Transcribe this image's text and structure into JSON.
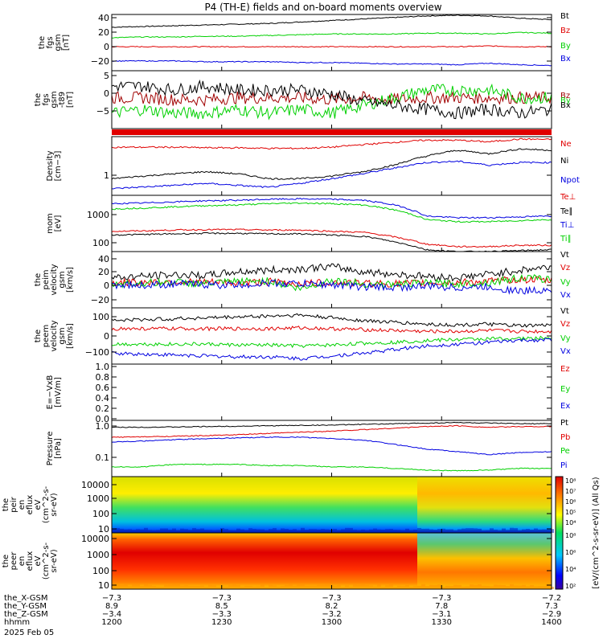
{
  "title": "P4 (TH-E) fields and on-board moments overview",
  "colors": {
    "black": "#000000",
    "red": "#e00000",
    "green": "#00d000",
    "blue": "#0000e0",
    "darkred": "#a00000"
  },
  "chart_data": [
    {
      "type": "line",
      "ylabel": [
        "the",
        "fgs",
        "gsm",
        "[nT]"
      ],
      "yticks": [
        "40",
        "20",
        "0",
        "−20"
      ],
      "ylim": [
        -30,
        45
      ],
      "series": [
        {
          "name": "Bt",
          "color": "black",
          "values": [
            28,
            29,
            30,
            31,
            32,
            33,
            35,
            37,
            39,
            41,
            43,
            44,
            43,
            40,
            38
          ]
        },
        {
          "name": "Bz",
          "color": "red",
          "values": [
            2,
            2,
            2,
            2,
            2,
            2,
            2,
            2,
            2,
            2,
            2,
            2,
            3,
            2,
            2
          ]
        },
        {
          "name": "By",
          "color": "green",
          "values": [
            14,
            15,
            15,
            16,
            16,
            17,
            18,
            19,
            19,
            19,
            20,
            20,
            19,
            21,
            20
          ]
        },
        {
          "name": "Bx",
          "color": "blue",
          "values": [
            -17,
            -17,
            -17,
            -18,
            -18,
            -18,
            -19,
            -19,
            -20,
            -21,
            -21,
            -22,
            -20,
            -22,
            -23
          ]
        }
      ]
    },
    {
      "type": "line",
      "ylabel": [
        "the",
        "fgs",
        "gsm",
        "-t89",
        "[nT]"
      ],
      "yticks": [
        "5",
        "0",
        "−5"
      ],
      "ylim": [
        -9,
        6
      ],
      "series": [
        {
          "name": "Bz",
          "color": "darkred",
          "values": [
            -1,
            -1,
            -1.5,
            -1.5,
            -1,
            -1,
            -1,
            -1.5,
            -1,
            -1.5,
            -1,
            -1,
            -1,
            -1,
            -1
          ]
        },
        {
          "name": "By",
          "color": "green",
          "values": [
            -5,
            -4,
            -5,
            -5,
            -4,
            -5,
            -4,
            -5,
            -3,
            -1,
            1,
            1,
            1,
            -1,
            -1
          ]
        },
        {
          "name": "Bx",
          "color": "black",
          "values": [
            2,
            2,
            1,
            2,
            1,
            1,
            1,
            0,
            -2,
            -3,
            -4,
            -5,
            -4,
            -5,
            -4
          ]
        }
      ]
    },
    {
      "type": "line",
      "ylabel": [
        "Density",
        "[cm−3]"
      ],
      "yticks": [
        "1"
      ],
      "scale": "log",
      "ylim": [
        0.3,
        6
      ],
      "series": [
        {
          "name": "Ne",
          "color": "red",
          "values": [
            3.5,
            3.5,
            3.5,
            3.4,
            3.4,
            3.3,
            3.3,
            3.5,
            4,
            4.5,
            5,
            5,
            4.6,
            5.3,
            5.2
          ]
        },
        {
          "name": "Ni",
          "color": "black",
          "values": [
            0.7,
            0.8,
            0.9,
            1.0,
            0.9,
            0.7,
            0.7,
            0.8,
            1.0,
            1.4,
            2.2,
            3.0,
            2.5,
            3.2,
            3.0
          ]
        },
        {
          "name": "Npot",
          "color": "blue",
          "values": [
            0.42,
            0.46,
            0.5,
            0.55,
            0.5,
            0.45,
            0.55,
            0.7,
            0.9,
            1.2,
            1.6,
            1.7,
            1.4,
            1.6,
            1.6
          ]
        }
      ]
    },
    {
      "type": "line",
      "ylabel": [
        "mom",
        "[eV]"
      ],
      "yticks": [
        "1000",
        "100"
      ],
      "scale": "log",
      "ylim": [
        70,
        4000
      ],
      "series": [
        {
          "name": "Te⊥",
          "color": "red",
          "values": [
            300,
            310,
            330,
            340,
            340,
            330,
            330,
            300,
            280,
            200,
            120,
            100,
            100,
            110,
            110
          ]
        },
        {
          "name": "Te∥",
          "color": "black",
          "values": [
            230,
            240,
            250,
            260,
            260,
            250,
            250,
            230,
            210,
            140,
            80,
            70,
            70,
            75,
            80
          ]
        },
        {
          "name": "Ti⊥",
          "color": "blue",
          "values": [
            2200,
            2300,
            2500,
            2700,
            2800,
            3000,
            3100,
            3000,
            2800,
            2000,
            900,
            800,
            800,
            850,
            900
          ]
        },
        {
          "name": "Ti∥",
          "color": "green",
          "values": [
            1500,
            1600,
            1750,
            1900,
            2000,
            2200,
            2300,
            2200,
            2000,
            1400,
            700,
            600,
            600,
            650,
            700
          ]
        }
      ]
    },
    {
      "type": "line",
      "ylabel": [
        "the",
        "peim",
        "velocity",
        "gsm",
        "[km/s]"
      ],
      "yticks": [
        "40",
        "20",
        "0",
        "−20"
      ],
      "ylim": [
        -30,
        45
      ],
      "series": [
        {
          "name": "Vt",
          "color": "black",
          "values": [
            10,
            12,
            14,
            13,
            18,
            20,
            22,
            25,
            18,
            15,
            12,
            10,
            15,
            20,
            25
          ]
        },
        {
          "name": "Vz",
          "color": "red",
          "values": [
            3,
            4,
            5,
            4,
            3,
            5,
            2,
            4,
            3,
            2,
            3,
            4,
            5,
            8,
            6
          ]
        },
        {
          "name": "Vy",
          "color": "green",
          "values": [
            2,
            3,
            4,
            2,
            5,
            6,
            -5,
            7,
            2,
            1,
            3,
            2,
            4,
            10,
            8
          ]
        },
        {
          "name": "Vx",
          "color": "blue",
          "values": [
            1,
            0,
            2,
            1,
            0,
            3,
            2,
            1,
            -2,
            -3,
            -1,
            -3,
            -2,
            -8,
            -5
          ]
        }
      ]
    },
    {
      "type": "line",
      "ylabel": [
        "the",
        "peem",
        "velocity",
        "gsm",
        "[km/s]"
      ],
      "yticks": [
        "100",
        "0",
        "−100"
      ],
      "ylim": [
        -140,
        170
      ],
      "series": [
        {
          "name": "Vt",
          "color": "black",
          "values": [
            100,
            105,
            110,
            115,
            120,
            125,
            130,
            115,
            100,
            90,
            80,
            75,
            80,
            70,
            75
          ]
        },
        {
          "name": "Vz",
          "color": "red",
          "values": [
            55,
            55,
            55,
            55,
            55,
            55,
            60,
            55,
            50,
            45,
            40,
            40,
            45,
            40,
            40
          ]
        },
        {
          "name": "Vy",
          "color": "green",
          "values": [
            -30,
            -30,
            -30,
            -30,
            -35,
            -35,
            -40,
            -35,
            -25,
            -20,
            -10,
            -5,
            0,
            0,
            5
          ]
        },
        {
          "name": "Vx",
          "color": "blue",
          "values": [
            -80,
            -85,
            -90,
            -95,
            -100,
            -100,
            -110,
            -95,
            -80,
            -60,
            -40,
            -30,
            -20,
            -10,
            -5
          ]
        }
      ]
    },
    {
      "type": "line",
      "ylabel": [
        "E=−VxB",
        "[mV/m]"
      ],
      "yticks": [
        "1.0",
        "0.8",
        "0.6",
        "0.4",
        "0.2",
        "0.0"
      ],
      "ylim": [
        0,
        1
      ],
      "series": [
        {
          "name": "Ez",
          "color": "red",
          "values": []
        },
        {
          "name": "Ey",
          "color": "green",
          "values": []
        },
        {
          "name": "Ex",
          "color": "blue",
          "values": []
        }
      ]
    },
    {
      "type": "line",
      "ylabel": [
        "Pressure",
        "[nPa]"
      ],
      "yticks": [
        "1.0",
        "0.1"
      ],
      "scale": "log",
      "ylim": [
        0.025,
        1.4
      ],
      "series": [
        {
          "name": "Pt",
          "color": "black",
          "values": [
            0.85,
            0.86,
            0.87,
            0.9,
            0.92,
            0.95,
            0.98,
            1.0,
            1.05,
            1.1,
            1.15,
            1.2,
            1.15,
            1.1,
            1.1
          ]
        },
        {
          "name": "Pb",
          "color": "red",
          "values": [
            0.42,
            0.43,
            0.45,
            0.47,
            0.5,
            0.55,
            0.6,
            0.65,
            0.72,
            0.8,
            0.9,
            0.95,
            0.85,
            0.9,
            0.9
          ]
        },
        {
          "name": "Pe",
          "color": "green",
          "values": [
            0.05,
            0.05,
            0.06,
            0.06,
            0.06,
            0.055,
            0.055,
            0.05,
            0.05,
            0.045,
            0.04,
            0.038,
            0.04,
            0.045,
            0.045
          ]
        },
        {
          "name": "Pi",
          "color": "blue",
          "values": [
            0.3,
            0.32,
            0.35,
            0.38,
            0.4,
            0.42,
            0.42,
            0.38,
            0.34,
            0.25,
            0.18,
            0.15,
            0.12,
            0.14,
            0.15
          ]
        }
      ]
    },
    {
      "type": "heatmap",
      "ylabel": [
        "the",
        "peir",
        "en",
        "eflux",
        "eV",
        "(cm^2-s-",
        "sr-eV)"
      ],
      "yticks": [
        "10000",
        "1000",
        "100",
        "10"
      ]
    },
    {
      "type": "heatmap",
      "ylabel": [
        "the",
        "peer",
        "en",
        "eflux",
        "eV",
        "(cm^2-s-",
        "sr-eV)"
      ],
      "yticks": [
        "10000",
        "1000",
        "100",
        "10"
      ]
    }
  ],
  "colorbar": {
    "label": "[eV/(cm^2-s-sr-eV)] (All Qs)",
    "ticks_top": [
      "10⁸",
      "10⁷",
      "10⁶",
      "10⁵",
      "10⁴"
    ],
    "ticks_bottom": [
      "10⁸",
      "10⁶",
      "10⁴",
      "10²"
    ]
  },
  "xaxis": {
    "rows": [
      {
        "label": "the_X-GSM",
        "values": [
          "−7.3",
          "−7.3",
          "−7.3",
          "−7.3",
          "−7.2"
        ]
      },
      {
        "label": "the_Y-GSM",
        "values": [
          "8.9",
          "8.5",
          "8.2",
          "7.8",
          "7.3"
        ]
      },
      {
        "label": "the_Z-GSM",
        "values": [
          "−3.4",
          "−3.3",
          "−3.2",
          "−3.1",
          "−2.9"
        ]
      },
      {
        "label": "hhmm",
        "values": [
          "1200",
          "1230",
          "1300",
          "1330",
          "1400"
        ]
      }
    ],
    "date": "2025 Feb 05"
  }
}
